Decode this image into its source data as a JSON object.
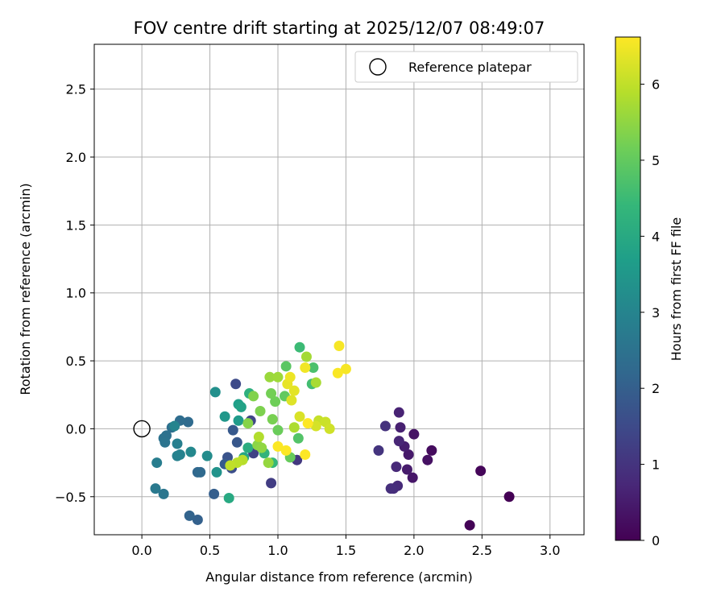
{
  "chart_data": {
    "type": "scatter",
    "title": "FOV centre drift starting at 2025/12/07 08:49:07",
    "xlabel": "Angular distance from reference (arcmin)",
    "ylabel": "Rotation from reference (arcmin)",
    "xlim": [
      -0.35,
      3.25
    ],
    "ylim": [
      -0.78,
      2.83
    ],
    "xticks": [
      0.0,
      0.5,
      1.0,
      1.5,
      2.0,
      2.5,
      3.0
    ],
    "xtick_labels": [
      "0.0",
      "0.5",
      "1.0",
      "1.5",
      "2.0",
      "2.5",
      "3.0"
    ],
    "yticks": [
      -0.5,
      0.0,
      0.5,
      1.0,
      1.5,
      2.0,
      2.5
    ],
    "ytick_labels": [
      "−0.5",
      "0.0",
      "0.5",
      "1.0",
      "1.5",
      "2.0",
      "2.5"
    ],
    "grid": true,
    "legend": {
      "position": "top-right",
      "entries": [
        "Reference platepar"
      ]
    },
    "reference_point": {
      "x": 0.0,
      "y": 0.0
    },
    "colorbar": {
      "label": "Hours from first FF file",
      "range": [
        0,
        6.62
      ],
      "ticks": [
        0,
        1,
        2,
        3,
        4,
        5,
        6
      ],
      "tick_labels": [
        "0",
        "1",
        "2",
        "3",
        "4",
        "5",
        "6"
      ],
      "colormap": [
        "#440154",
        "#482878",
        "#3e4989",
        "#31688e",
        "#26828e",
        "#1f9e89",
        "#35b779",
        "#6ece58",
        "#b5de2b",
        "#fde725"
      ]
    },
    "points": [
      {
        "x": 2.7,
        "y": -0.5,
        "h": 0.0
      },
      {
        "x": 2.41,
        "y": -0.71,
        "h": 0.05
      },
      {
        "x": 2.49,
        "y": -0.31,
        "h": 0.1
      },
      {
        "x": 2.13,
        "y": -0.16,
        "h": 0.2
      },
      {
        "x": 2.1,
        "y": -0.23,
        "h": 0.3
      },
      {
        "x": 2.0,
        "y": -0.04,
        "h": 0.35
      },
      {
        "x": 1.99,
        "y": -0.36,
        "h": 0.4
      },
      {
        "x": 1.96,
        "y": -0.19,
        "h": 0.45
      },
      {
        "x": 1.95,
        "y": -0.3,
        "h": 0.5
      },
      {
        "x": 1.93,
        "y": -0.13,
        "h": 0.55
      },
      {
        "x": 1.9,
        "y": 0.01,
        "h": 0.6
      },
      {
        "x": 1.89,
        "y": 0.12,
        "h": 0.65
      },
      {
        "x": 1.89,
        "y": -0.09,
        "h": 0.7
      },
      {
        "x": 1.87,
        "y": -0.28,
        "h": 0.75
      },
      {
        "x": 1.88,
        "y": -0.42,
        "h": 0.8
      },
      {
        "x": 1.85,
        "y": -0.44,
        "h": 0.85
      },
      {
        "x": 1.83,
        "y": -0.44,
        "h": 0.9
      },
      {
        "x": 1.79,
        "y": 0.02,
        "h": 0.95
      },
      {
        "x": 1.74,
        "y": -0.16,
        "h": 1.0
      },
      {
        "x": 1.14,
        "y": -0.23,
        "h": 1.1
      },
      {
        "x": 0.95,
        "y": -0.4,
        "h": 1.2
      },
      {
        "x": 0.82,
        "y": -0.18,
        "h": 1.3
      },
      {
        "x": 0.8,
        "y": 0.06,
        "h": 1.4
      },
      {
        "x": 0.69,
        "y": 0.33,
        "h": 1.5
      },
      {
        "x": 0.66,
        "y": -0.29,
        "h": 1.6
      },
      {
        "x": 0.63,
        "y": -0.21,
        "h": 1.7
      },
      {
        "x": 0.7,
        "y": -0.1,
        "h": 1.8
      },
      {
        "x": 0.67,
        "y": -0.01,
        "h": 1.85
      },
      {
        "x": 0.61,
        "y": -0.26,
        "h": 1.9
      },
      {
        "x": 0.53,
        "y": -0.48,
        "h": 2.0
      },
      {
        "x": 0.41,
        "y": -0.67,
        "h": 2.05
      },
      {
        "x": 0.35,
        "y": -0.64,
        "h": 2.1
      },
      {
        "x": 0.41,
        "y": -0.32,
        "h": 2.2
      },
      {
        "x": 0.43,
        "y": -0.32,
        "h": 2.25
      },
      {
        "x": 0.34,
        "y": 0.05,
        "h": 2.3
      },
      {
        "x": 0.28,
        "y": 0.06,
        "h": 2.35
      },
      {
        "x": 0.22,
        "y": 0.01,
        "h": 2.4
      },
      {
        "x": 0.18,
        "y": -0.05,
        "h": 2.45
      },
      {
        "x": 0.16,
        "y": -0.07,
        "h": 2.5
      },
      {
        "x": 0.17,
        "y": -0.1,
        "h": 2.55
      },
      {
        "x": 0.16,
        "y": -0.48,
        "h": 2.6
      },
      {
        "x": 0.1,
        "y": -0.44,
        "h": 2.7
      },
      {
        "x": 0.11,
        "y": -0.25,
        "h": 2.8
      },
      {
        "x": 0.26,
        "y": -0.11,
        "h": 2.85
      },
      {
        "x": 0.26,
        "y": -0.2,
        "h": 2.9
      },
      {
        "x": 0.28,
        "y": -0.19,
        "h": 2.95
      },
      {
        "x": 0.24,
        "y": 0.02,
        "h": 3.0
      },
      {
        "x": 0.36,
        "y": -0.17,
        "h": 3.1
      },
      {
        "x": 0.48,
        "y": -0.2,
        "h": 3.2
      },
      {
        "x": 0.54,
        "y": 0.27,
        "h": 3.3
      },
      {
        "x": 0.55,
        "y": -0.32,
        "h": 3.4
      },
      {
        "x": 0.61,
        "y": 0.09,
        "h": 3.5
      },
      {
        "x": 0.71,
        "y": 0.06,
        "h": 3.6
      },
      {
        "x": 0.71,
        "y": 0.18,
        "h": 3.7
      },
      {
        "x": 0.73,
        "y": 0.16,
        "h": 3.8
      },
      {
        "x": 0.75,
        "y": -0.21,
        "h": 3.9
      },
      {
        "x": 0.64,
        "y": -0.51,
        "h": 4.0
      },
      {
        "x": 0.78,
        "y": -0.14,
        "h": 4.1
      },
      {
        "x": 0.79,
        "y": 0.26,
        "h": 4.2
      },
      {
        "x": 0.9,
        "y": -0.18,
        "h": 4.3
      },
      {
        "x": 0.96,
        "y": -0.25,
        "h": 4.4
      },
      {
        "x": 1.16,
        "y": 0.6,
        "h": 4.5
      },
      {
        "x": 1.25,
        "y": 0.33,
        "h": 4.6
      },
      {
        "x": 1.26,
        "y": 0.45,
        "h": 4.7
      },
      {
        "x": 1.15,
        "y": -0.07,
        "h": 4.8
      },
      {
        "x": 1.06,
        "y": 0.46,
        "h": 4.9
      },
      {
        "x": 1.05,
        "y": 0.24,
        "h": 5.0
      },
      {
        "x": 1.09,
        "y": -0.21,
        "h": 5.05
      },
      {
        "x": 1.0,
        "y": -0.01,
        "h": 5.1
      },
      {
        "x": 0.98,
        "y": 0.2,
        "h": 5.15
      },
      {
        "x": 0.95,
        "y": 0.26,
        "h": 5.2
      },
      {
        "x": 0.96,
        "y": 0.07,
        "h": 5.25
      },
      {
        "x": 0.87,
        "y": 0.13,
        "h": 5.3
      },
      {
        "x": 0.82,
        "y": 0.24,
        "h": 5.35
      },
      {
        "x": 0.78,
        "y": 0.04,
        "h": 5.4
      },
      {
        "x": 0.85,
        "y": -0.12,
        "h": 5.45
      },
      {
        "x": 0.88,
        "y": -0.14,
        "h": 5.5
      },
      {
        "x": 0.93,
        "y": -0.25,
        "h": 5.55
      },
      {
        "x": 0.94,
        "y": 0.38,
        "h": 5.6
      },
      {
        "x": 1.0,
        "y": 0.38,
        "h": 5.65
      },
      {
        "x": 1.21,
        "y": 0.53,
        "h": 5.7
      },
      {
        "x": 1.28,
        "y": 0.34,
        "h": 5.75
      },
      {
        "x": 1.12,
        "y": 0.01,
        "h": 5.8
      },
      {
        "x": 0.86,
        "y": -0.06,
        "h": 5.85
      },
      {
        "x": 0.74,
        "y": -0.23,
        "h": 5.9
      },
      {
        "x": 0.7,
        "y": -0.25,
        "h": 5.95
      },
      {
        "x": 0.65,
        "y": -0.27,
        "h": 6.0
      },
      {
        "x": 1.3,
        "y": 0.06,
        "h": 6.05
      },
      {
        "x": 1.35,
        "y": 0.05,
        "h": 6.1
      },
      {
        "x": 1.38,
        "y": 0.0,
        "h": 6.15
      },
      {
        "x": 1.28,
        "y": 0.02,
        "h": 6.2
      },
      {
        "x": 1.16,
        "y": 0.09,
        "h": 6.25
      },
      {
        "x": 1.1,
        "y": 0.21,
        "h": 6.3
      },
      {
        "x": 1.12,
        "y": 0.28,
        "h": 6.35
      },
      {
        "x": 1.07,
        "y": 0.33,
        "h": 6.4
      },
      {
        "x": 1.09,
        "y": 0.38,
        "h": 6.45
      },
      {
        "x": 1.2,
        "y": 0.45,
        "h": 6.5
      },
      {
        "x": 1.45,
        "y": 0.61,
        "h": 6.55
      },
      {
        "x": 1.5,
        "y": 0.44,
        "h": 6.55
      },
      {
        "x": 1.44,
        "y": 0.41,
        "h": 6.58
      },
      {
        "x": 1.0,
        "y": -0.13,
        "h": 6.6
      },
      {
        "x": 1.06,
        "y": -0.16,
        "h": 6.6
      },
      {
        "x": 1.2,
        "y": -0.19,
        "h": 6.62
      },
      {
        "x": 1.22,
        "y": 0.04,
        "h": 6.62
      }
    ]
  }
}
